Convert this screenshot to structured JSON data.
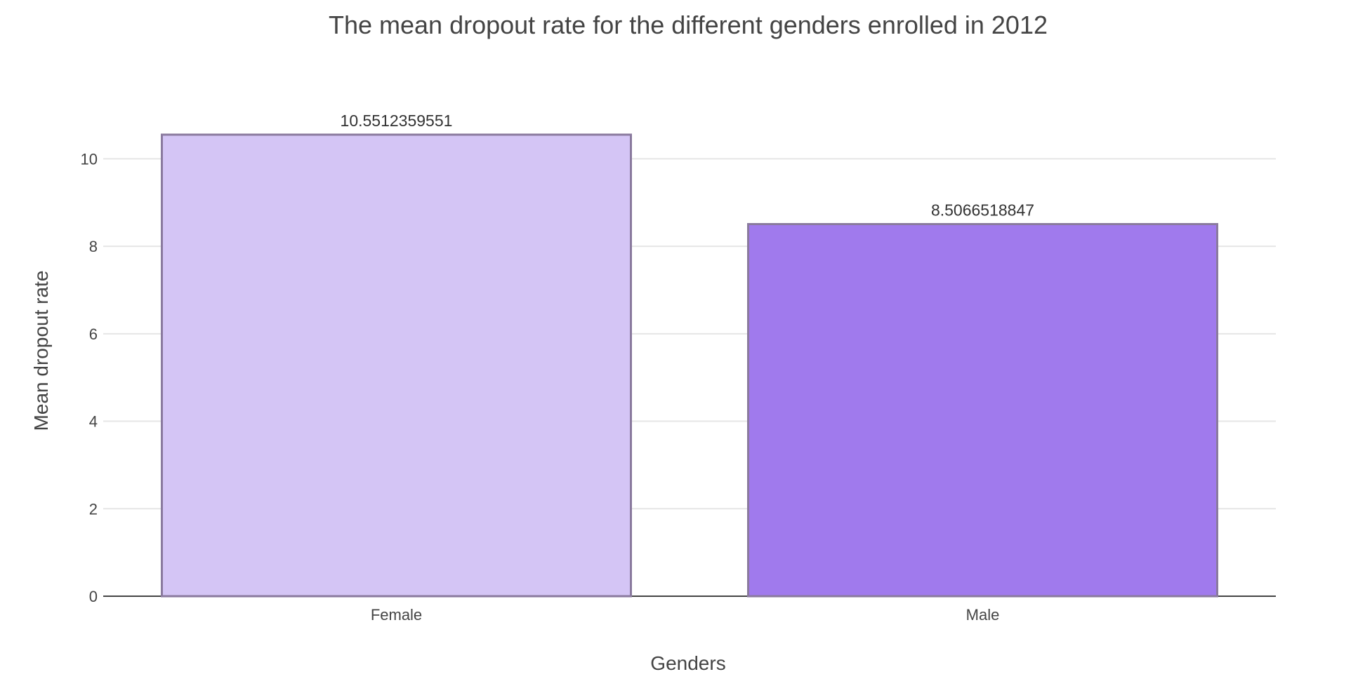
{
  "chart_data": {
    "type": "bar",
    "title": "The mean dropout rate for the different genders enrolled in 2012",
    "xlabel": "Genders",
    "ylabel": "Mean dropout rate",
    "categories": [
      "Female",
      "Male"
    ],
    "values": [
      10.5512359551,
      8.5066518847
    ],
    "value_labels": [
      "10.5512359551",
      "8.5066518847"
    ],
    "ylim": [
      0,
      11
    ],
    "yticks": [
      0,
      2,
      4,
      6,
      8,
      10
    ],
    "grid": true,
    "legend": "none",
    "colors": {
      "bar_fills": [
        "#d4c5f5",
        "#a07aed"
      ],
      "bar_edge": "#8a7a9e",
      "grid": "#e6e6e6",
      "text": "#444444"
    }
  }
}
